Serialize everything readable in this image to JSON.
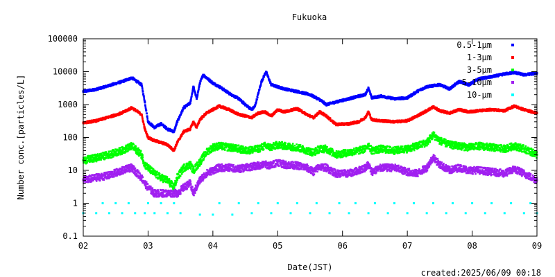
{
  "footer": {
    "created": "created:2025/06/09 00:18"
  },
  "chart_data": {
    "type": "scatter",
    "title": "Fukuoka",
    "xlabel": "Date(JST)",
    "ylabel": "Number conc.[particles/L]",
    "x_ticks": [
      "02",
      "03",
      "04",
      "05",
      "06",
      "07",
      "08",
      "09"
    ],
    "xlim": [
      2,
      9
    ],
    "y_scale": "log",
    "ylim": [
      0.1,
      100000
    ],
    "y_ticks": [
      {
        "value": 0.1,
        "label": "0.1"
      },
      {
        "value": 1,
        "label": "1"
      },
      {
        "value": 10,
        "label": "10"
      },
      {
        "value": 100,
        "label": "100"
      },
      {
        "value": 1000,
        "label": "1000"
      },
      {
        "value": 10000,
        "label": "10000"
      },
      {
        "value": 100000,
        "label": "100000"
      }
    ],
    "grid": false,
    "legend_position": "top-right",
    "series": [
      {
        "name": "0.5-1μm",
        "color": "#0000ff",
        "points": [
          [
            2.0,
            2500
          ],
          [
            2.2,
            2900
          ],
          [
            2.4,
            3800
          ],
          [
            2.6,
            5000
          ],
          [
            2.75,
            6500
          ],
          [
            2.9,
            4000
          ],
          [
            2.95,
            1200
          ],
          [
            3.0,
            300
          ],
          [
            3.1,
            200
          ],
          [
            3.2,
            260
          ],
          [
            3.3,
            180
          ],
          [
            3.4,
            150
          ],
          [
            3.45,
            300
          ],
          [
            3.55,
            800
          ],
          [
            3.65,
            1100
          ],
          [
            3.7,
            3500
          ],
          [
            3.75,
            1500
          ],
          [
            3.8,
            4500
          ],
          [
            3.85,
            8000
          ],
          [
            4.0,
            4500
          ],
          [
            4.1,
            3500
          ],
          [
            4.25,
            2200
          ],
          [
            4.4,
            1500
          ],
          [
            4.5,
            1000
          ],
          [
            4.6,
            700
          ],
          [
            4.65,
            900
          ],
          [
            4.75,
            5000
          ],
          [
            4.82,
            10000
          ],
          [
            4.9,
            4000
          ],
          [
            5.1,
            3000
          ],
          [
            5.3,
            2500
          ],
          [
            5.5,
            2000
          ],
          [
            5.65,
            1400
          ],
          [
            5.75,
            1000
          ],
          [
            5.9,
            1200
          ],
          [
            6.1,
            1500
          ],
          [
            6.25,
            1800
          ],
          [
            6.35,
            2000
          ],
          [
            6.4,
            3200
          ],
          [
            6.45,
            1600
          ],
          [
            6.6,
            1800
          ],
          [
            6.8,
            1500
          ],
          [
            7.0,
            1600
          ],
          [
            7.15,
            2500
          ],
          [
            7.3,
            3500
          ],
          [
            7.5,
            4000
          ],
          [
            7.65,
            3000
          ],
          [
            7.8,
            5000
          ],
          [
            7.95,
            4000
          ],
          [
            8.1,
            6000
          ],
          [
            8.3,
            7000
          ],
          [
            8.5,
            8500
          ],
          [
            8.65,
            9500
          ],
          [
            8.8,
            8000
          ],
          [
            9.0,
            9000
          ]
        ]
      },
      {
        "name": "1-3μm",
        "color": "#ff0000",
        "points": [
          [
            2.0,
            280
          ],
          [
            2.2,
            320
          ],
          [
            2.4,
            420
          ],
          [
            2.6,
            560
          ],
          [
            2.75,
            800
          ],
          [
            2.9,
            500
          ],
          [
            2.95,
            180
          ],
          [
            3.0,
            100
          ],
          [
            3.1,
            80
          ],
          [
            3.2,
            70
          ],
          [
            3.3,
            60
          ],
          [
            3.4,
            40
          ],
          [
            3.45,
            70
          ],
          [
            3.55,
            150
          ],
          [
            3.65,
            180
          ],
          [
            3.7,
            300
          ],
          [
            3.75,
            200
          ],
          [
            3.8,
            350
          ],
          [
            3.9,
            550
          ],
          [
            4.0,
            700
          ],
          [
            4.1,
            900
          ],
          [
            4.25,
            700
          ],
          [
            4.4,
            500
          ],
          [
            4.5,
            450
          ],
          [
            4.6,
            400
          ],
          [
            4.7,
            550
          ],
          [
            4.8,
            600
          ],
          [
            4.9,
            450
          ],
          [
            5.0,
            700
          ],
          [
            5.1,
            600
          ],
          [
            5.3,
            750
          ],
          [
            5.45,
            500
          ],
          [
            5.55,
            400
          ],
          [
            5.65,
            600
          ],
          [
            5.75,
            450
          ],
          [
            5.9,
            250
          ],
          [
            6.1,
            260
          ],
          [
            6.25,
            300
          ],
          [
            6.35,
            400
          ],
          [
            6.4,
            600
          ],
          [
            6.45,
            350
          ],
          [
            6.6,
            320
          ],
          [
            6.8,
            300
          ],
          [
            7.0,
            320
          ],
          [
            7.15,
            450
          ],
          [
            7.3,
            650
          ],
          [
            7.4,
            850
          ],
          [
            7.5,
            650
          ],
          [
            7.65,
            550
          ],
          [
            7.8,
            700
          ],
          [
            7.95,
            600
          ],
          [
            8.1,
            650
          ],
          [
            8.3,
            700
          ],
          [
            8.5,
            650
          ],
          [
            8.65,
            900
          ],
          [
            8.8,
            700
          ],
          [
            9.0,
            550
          ]
        ]
      },
      {
        "name": "3-5μm",
        "color": "#00ff00",
        "points": [
          [
            2.0,
            20
          ],
          [
            2.2,
            24
          ],
          [
            2.4,
            30
          ],
          [
            2.6,
            40
          ],
          [
            2.75,
            55
          ],
          [
            2.9,
            30
          ],
          [
            2.95,
            15
          ],
          [
            3.0,
            12
          ],
          [
            3.1,
            8
          ],
          [
            3.2,
            6
          ],
          [
            3.3,
            5
          ],
          [
            3.4,
            3
          ],
          [
            3.45,
            6
          ],
          [
            3.55,
            12
          ],
          [
            3.65,
            15
          ],
          [
            3.7,
            10
          ],
          [
            3.8,
            18
          ],
          [
            3.9,
            35
          ],
          [
            4.0,
            50
          ],
          [
            4.1,
            55
          ],
          [
            4.25,
            50
          ],
          [
            4.4,
            45
          ],
          [
            4.5,
            40
          ],
          [
            4.6,
            42
          ],
          [
            4.7,
            45
          ],
          [
            4.8,
            55
          ],
          [
            4.9,
            50
          ],
          [
            5.0,
            60
          ],
          [
            5.1,
            55
          ],
          [
            5.3,
            50
          ],
          [
            5.45,
            40
          ],
          [
            5.55,
            35
          ],
          [
            5.65,
            45
          ],
          [
            5.75,
            45
          ],
          [
            5.9,
            30
          ],
          [
            6.1,
            35
          ],
          [
            6.25,
            40
          ],
          [
            6.35,
            45
          ],
          [
            6.4,
            60
          ],
          [
            6.45,
            40
          ],
          [
            6.6,
            45
          ],
          [
            6.8,
            40
          ],
          [
            7.0,
            45
          ],
          [
            7.15,
            55
          ],
          [
            7.3,
            70
          ],
          [
            7.4,
            120
          ],
          [
            7.5,
            80
          ],
          [
            7.65,
            60
          ],
          [
            7.8,
            55
          ],
          [
            7.95,
            50
          ],
          [
            8.1,
            55
          ],
          [
            8.3,
            50
          ],
          [
            8.5,
            45
          ],
          [
            8.65,
            55
          ],
          [
            8.8,
            45
          ],
          [
            9.0,
            30
          ]
        ]
      },
      {
        "name": "5-10μm",
        "color": "#a020f0",
        "points": [
          [
            2.0,
            5
          ],
          [
            2.2,
            6
          ],
          [
            2.4,
            7
          ],
          [
            2.6,
            10
          ],
          [
            2.75,
            12
          ],
          [
            2.9,
            6
          ],
          [
            2.95,
            4
          ],
          [
            3.0,
            3
          ],
          [
            3.1,
            2
          ],
          [
            3.2,
            2
          ],
          [
            3.3,
            2
          ],
          [
            3.4,
            2
          ],
          [
            3.45,
            2
          ],
          [
            3.55,
            3
          ],
          [
            3.65,
            4
          ],
          [
            3.7,
            2
          ],
          [
            3.8,
            5
          ],
          [
            3.9,
            8
          ],
          [
            4.0,
            10
          ],
          [
            4.1,
            12
          ],
          [
            4.25,
            12
          ],
          [
            4.4,
            11
          ],
          [
            4.5,
            12
          ],
          [
            4.6,
            13
          ],
          [
            4.7,
            14
          ],
          [
            4.8,
            15
          ],
          [
            4.9,
            14
          ],
          [
            5.0,
            18
          ],
          [
            5.1,
            15
          ],
          [
            5.3,
            14
          ],
          [
            5.45,
            12
          ],
          [
            5.55,
            9
          ],
          [
            5.65,
            13
          ],
          [
            5.75,
            12
          ],
          [
            5.9,
            8
          ],
          [
            6.1,
            8
          ],
          [
            6.25,
            10
          ],
          [
            6.35,
            12
          ],
          [
            6.4,
            15
          ],
          [
            6.45,
            9
          ],
          [
            6.6,
            12
          ],
          [
            6.8,
            12
          ],
          [
            7.0,
            9
          ],
          [
            7.15,
            8
          ],
          [
            7.3,
            12
          ],
          [
            7.4,
            25
          ],
          [
            7.5,
            15
          ],
          [
            7.65,
            10
          ],
          [
            7.8,
            12
          ],
          [
            7.95,
            10
          ],
          [
            8.1,
            10
          ],
          [
            8.3,
            9
          ],
          [
            8.5,
            8
          ],
          [
            8.65,
            11
          ],
          [
            8.8,
            8
          ],
          [
            9.0,
            5
          ]
        ]
      },
      {
        "name": "10-μm",
        "color": "#00ffff",
        "points": [
          [
            2.0,
            0.5
          ],
          [
            2.2,
            0.5
          ],
          [
            2.4,
            0.5
          ],
          [
            2.6,
            0.5
          ],
          [
            2.8,
            0.5
          ],
          [
            2.95,
            0.5
          ],
          [
            3.1,
            0.5
          ],
          [
            3.3,
            0.5
          ],
          [
            3.5,
            0.5
          ],
          [
            3.8,
            0.45
          ],
          [
            4.0,
            0.45
          ],
          [
            4.3,
            0.45
          ],
          [
            4.6,
            0.5
          ],
          [
            4.9,
            0.5
          ],
          [
            5.2,
            0.5
          ],
          [
            5.5,
            0.5
          ],
          [
            5.8,
            0.5
          ],
          [
            6.1,
            0.5
          ],
          [
            6.4,
            0.5
          ],
          [
            6.7,
            0.5
          ],
          [
            7.0,
            0.5
          ],
          [
            7.3,
            0.5
          ],
          [
            7.6,
            0.5
          ],
          [
            7.9,
            0.5
          ],
          [
            8.2,
            0.5
          ],
          [
            8.5,
            0.5
          ],
          [
            8.8,
            0.5
          ],
          [
            9.0,
            0.5
          ],
          [
            2.3,
            1
          ],
          [
            2.5,
            1
          ],
          [
            2.7,
            1
          ],
          [
            3.0,
            1
          ],
          [
            3.2,
            1
          ],
          [
            3.4,
            1
          ],
          [
            4.1,
            1
          ],
          [
            4.4,
            1
          ],
          [
            4.7,
            1
          ],
          [
            5.0,
            1
          ],
          [
            5.3,
            1
          ],
          [
            5.6,
            1
          ],
          [
            5.95,
            1
          ],
          [
            6.2,
            1
          ],
          [
            6.5,
            1
          ],
          [
            6.8,
            1
          ],
          [
            7.1,
            1
          ],
          [
            7.4,
            1
          ],
          [
            7.7,
            1
          ],
          [
            8.0,
            1
          ],
          [
            8.3,
            1
          ],
          [
            8.6,
            1
          ],
          [
            8.9,
            1
          ]
        ]
      }
    ]
  }
}
